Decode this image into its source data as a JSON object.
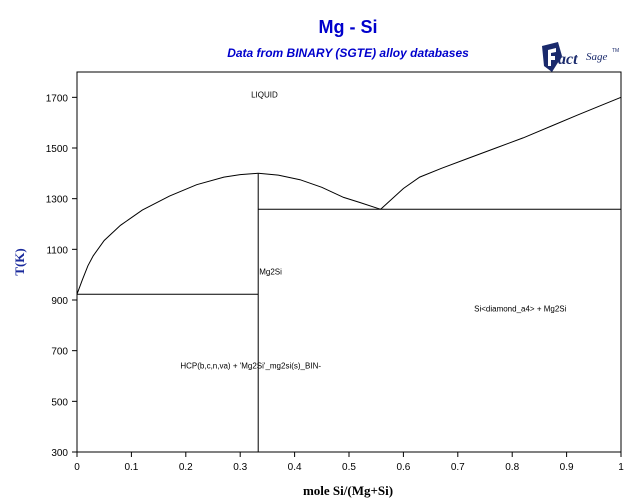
{
  "brand": {
    "logo_text": "FactSage",
    "logo_color": "#1a2a6c",
    "title_color": "#0000cc"
  },
  "chart_data": {
    "type": "line",
    "title": "Mg - Si",
    "subtitle": "Data from BINARY (SGTE) alloy databases",
    "xlabel": "mole Si/(Mg+Si)",
    "ylabel": "T(K)",
    "xlim": [
      0,
      1
    ],
    "ylim": [
      300,
      1800
    ],
    "xticks": [
      0,
      0.1,
      0.2,
      0.3,
      0.4,
      0.5,
      0.6,
      0.7,
      0.8,
      0.9,
      1
    ],
    "yticks": [
      300,
      500,
      700,
      900,
      1100,
      1300,
      1500,
      1700
    ],
    "grid": false,
    "series": [
      {
        "role": "liquidus-mg-side",
        "x": [
          0.0,
          0.01,
          0.02,
          0.03,
          0.05,
          0.08,
          0.12,
          0.17,
          0.22,
          0.27,
          0.3,
          0.333
        ],
        "y": [
          923,
          980,
          1035,
          1075,
          1135,
          1195,
          1255,
          1310,
          1355,
          1385,
          1395,
          1400
        ]
      },
      {
        "role": "liquidus-mid",
        "x": [
          0.333,
          0.37,
          0.41,
          0.45,
          0.49,
          0.52,
          0.558
        ],
        "y": [
          1400,
          1393,
          1375,
          1345,
          1305,
          1285,
          1258
        ]
      },
      {
        "role": "liquidus-si-side",
        "x": [
          0.558,
          0.6,
          0.63,
          0.67,
          0.72,
          0.77,
          0.82,
          0.87,
          0.92,
          0.96,
          1.0
        ],
        "y": [
          1258,
          1340,
          1385,
          1420,
          1460,
          1500,
          1540,
          1585,
          1630,
          1665,
          1700
        ]
      },
      {
        "role": "eutectic-mg",
        "x": [
          0.0,
          0.333
        ],
        "y": [
          923,
          923
        ]
      },
      {
        "role": "eutectic-si",
        "x": [
          0.333,
          1.0
        ],
        "y": [
          1258,
          1258
        ]
      },
      {
        "role": "mg2si-line",
        "x": [
          0.333,
          0.333
        ],
        "y": [
          300,
          1400
        ]
      }
    ],
    "annotations": [
      {
        "text": "LIQUID",
        "x": 0.32,
        "y": 1700
      },
      {
        "text": "Mg2Si",
        "x": 0.335,
        "y": 1000
      },
      {
        "text": "Si<diamond_a4> + Mg2Si",
        "x": 0.73,
        "y": 855
      },
      {
        "text": "HCP(b,c,n,va) + 'Mg2Si'_mg2si(s)_BIN-",
        "x": 0.19,
        "y": 630
      }
    ]
  }
}
